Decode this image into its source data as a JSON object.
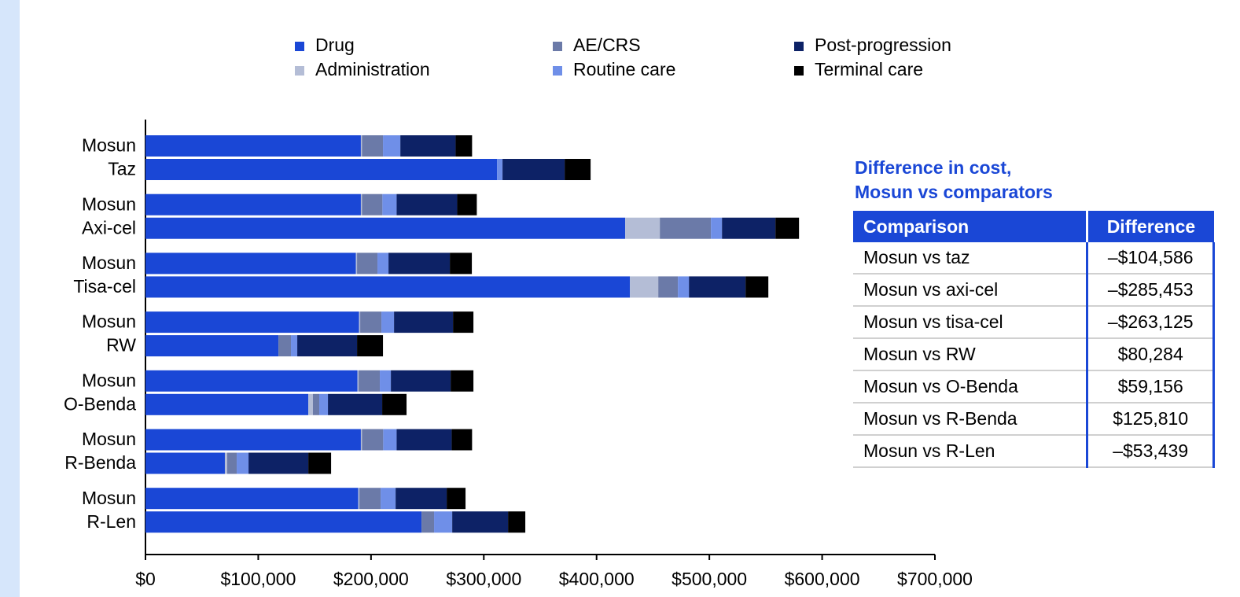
{
  "chart_data": {
    "type": "bar",
    "orientation": "horizontal",
    "categories": [
      "Mosun",
      "Taz",
      "Mosun",
      "Axi-cel",
      "Mosun",
      "Tisa-cel",
      "Mosun",
      "RW",
      "Mosun",
      "O-Benda",
      "Mosun",
      "R-Benda",
      "Mosun",
      "R-Len"
    ],
    "series": [
      {
        "name": "Drug",
        "color": "#1a47d6",
        "values": [
          191000,
          311700,
          191000,
          425400,
          186600,
          429600,
          189400,
          117900,
          188000,
          144400,
          191000,
          70400,
          188700,
          244800
        ]
      },
      {
        "name": "Administration",
        "color": "#b4bdd6",
        "values": [
          1000,
          0,
          1000,
          30700,
          1000,
          25100,
          1000,
          0,
          1000,
          4100,
          1000,
          2100,
          1000,
          0
        ]
      },
      {
        "name": "AE/CRS",
        "color": "#6b7aa8",
        "values": [
          18600,
          0,
          18100,
          45300,
          18100,
          17400,
          18800,
          11100,
          18800,
          5600,
          18800,
          8400,
          18800,
          11100
        ]
      },
      {
        "name": "Routine care",
        "color": "#6f8fe8",
        "values": [
          15400,
          4900,
          12600,
          9800,
          9800,
          9800,
          11200,
          5600,
          9800,
          7700,
          11900,
          10500,
          13300,
          16100
        ]
      },
      {
        "name": "Post-progression",
        "color": "#0d2266",
        "values": [
          49000,
          55100,
          53700,
          47400,
          54400,
          50200,
          52300,
          53000,
          53000,
          48100,
          48800,
          53000,
          45300,
          49500
        ]
      },
      {
        "name": "Terminal care",
        "color": "#000000",
        "values": [
          14600,
          23000,
          17400,
          20900,
          19500,
          20200,
          18100,
          23000,
          20200,
          21600,
          18100,
          20200,
          16700,
          15300
        ]
      }
    ],
    "xlim": [
      0,
      700000
    ],
    "xticks": [
      {
        "value": 0,
        "label": "$0"
      },
      {
        "value": 100000,
        "label": "$100,000"
      },
      {
        "value": 200000,
        "label": "$200,000"
      },
      {
        "value": 300000,
        "label": "$300,000"
      },
      {
        "value": 400000,
        "label": "$400,000"
      },
      {
        "value": 500000,
        "label": "$500,000"
      },
      {
        "value": 600000,
        "label": "$600,000"
      },
      {
        "value": 700000,
        "label": "$700,000"
      }
    ],
    "legend": "top"
  },
  "table": {
    "title": [
      "Difference in cost,",
      "Mosun vs comparators"
    ],
    "columns": [
      "Comparison",
      "Difference"
    ],
    "rows": [
      [
        "Mosun vs taz",
        "–$104,586"
      ],
      [
        "Mosun vs axi-cel",
        "–$285,453"
      ],
      [
        "Mosun vs tisa-cel",
        "–$263,125"
      ],
      [
        "Mosun vs RW",
        "$80,284"
      ],
      [
        "Mosun vs O-Benda",
        "$59,156"
      ],
      [
        "Mosun vs R-Benda",
        "$125,810"
      ],
      [
        "Mosun vs R-Len",
        "–$53,439"
      ]
    ]
  }
}
